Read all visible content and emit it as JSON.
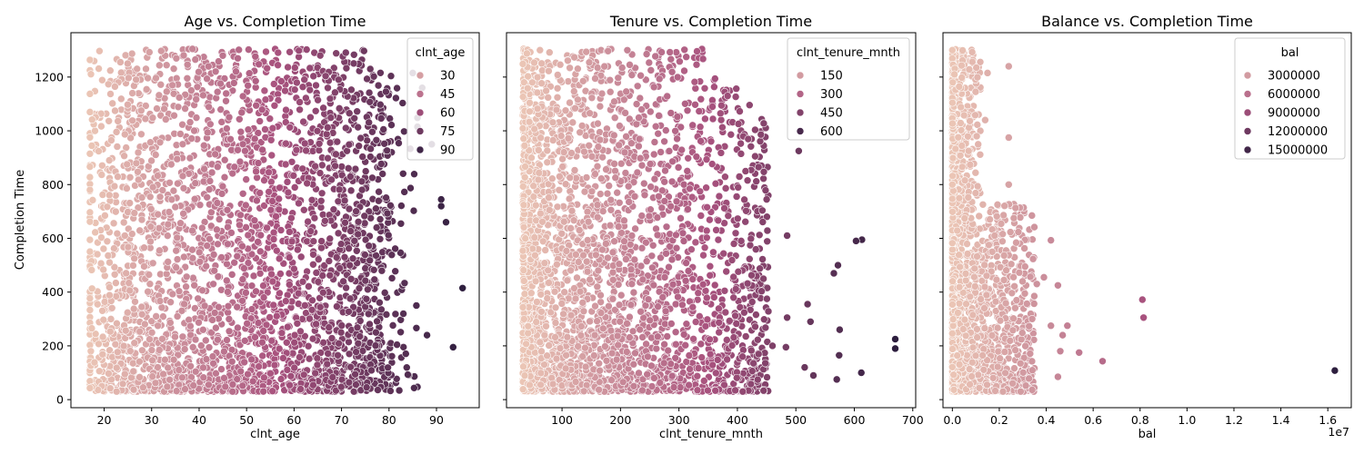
{
  "chart_data": [
    {
      "type": "scatter",
      "title": "Age vs. Completion Time",
      "xlabel": "clnt_age",
      "ylabel": "Completion Time",
      "xlim": [
        13,
        99
      ],
      "ylim": [
        -30,
        1365
      ],
      "xticks": [
        20,
        30,
        40,
        50,
        60,
        70,
        80,
        90
      ],
      "yticks": [
        0,
        200,
        400,
        600,
        800,
        1000,
        1200
      ],
      "grid": false,
      "hue": "clnt_age",
      "hue_range": [
        17,
        96
      ],
      "legend": {
        "title": "clnt_age",
        "placement": "top-right",
        "entries": [
          {
            "label": "30",
            "value": 30
          },
          {
            "label": "45",
            "value": 45
          },
          {
            "label": "60",
            "value": 60
          },
          {
            "label": "75",
            "value": 75
          },
          {
            "label": "90",
            "value": 90
          }
        ]
      },
      "points": {
        "x_range": [
          17,
          96
        ],
        "y_range": [
          30,
          1305
        ],
        "n_approx": 3000,
        "outliers": [
          [
            95.5,
            415
          ],
          [
            93.5,
            195
          ],
          [
            92,
            660
          ],
          [
            91,
            745
          ],
          [
            91,
            720
          ],
          [
            88,
            240
          ],
          [
            86,
            1015
          ],
          [
            87,
            1160
          ],
          [
            85,
            1215
          ],
          [
            89,
            950
          ]
        ]
      }
    },
    {
      "type": "scatter",
      "title": "Tenure vs. Completion Time",
      "xlabel": "clnt_tenure_mnth",
      "ylabel": "",
      "xlim": [
        5,
        705
      ],
      "ylim": [
        -30,
        1365
      ],
      "xticks": [
        100,
        200,
        300,
        400,
        500,
        600,
        700
      ],
      "yticks": [
        0,
        200,
        400,
        600,
        800,
        1000,
        1200
      ],
      "grid": false,
      "hue": "clnt_tenure_mnth",
      "hue_range": [
        33,
        670
      ],
      "legend": {
        "title": "clnt_tenure_mnth",
        "placement": "top-right",
        "entries": [
          {
            "label": "150",
            "value": 150
          },
          {
            "label": "300",
            "value": 300
          },
          {
            "label": "450",
            "value": 450
          },
          {
            "label": "600",
            "value": 600
          }
        ]
      },
      "points": {
        "x_range": [
          33,
          670
        ],
        "y_range": [
          30,
          1305
        ],
        "n_approx": 3000,
        "outliers": [
          [
            670,
            225
          ],
          [
            670,
            190
          ],
          [
            613,
            595
          ],
          [
            603,
            590
          ],
          [
            612,
            100
          ],
          [
            575,
            260
          ],
          [
            572,
            500
          ],
          [
            574,
            165
          ],
          [
            565,
            470
          ],
          [
            570,
            75
          ],
          [
            530,
            90
          ],
          [
            520,
            355
          ],
          [
            525,
            290
          ],
          [
            515,
            120
          ],
          [
            505,
            925
          ],
          [
            485,
            610
          ],
          [
            485,
            305
          ],
          [
            483,
            195
          ],
          [
            460,
            200
          ],
          [
            450,
            745
          ]
        ]
      }
    },
    {
      "type": "scatter",
      "title": "Balance vs. Completion Time",
      "xlabel": "bal",
      "ylabel": "",
      "x_scale_label": "1e7",
      "xlim": [
        -0.04,
        1.7
      ],
      "ylim": [
        -30,
        1365
      ],
      "xticks": [
        "0.0",
        "0.2",
        "0.4",
        "0.6",
        "0.8",
        "1.0",
        "1.2",
        "1.4",
        "1.6"
      ],
      "yticks": [
        0,
        200,
        400,
        600,
        800,
        1000,
        1200
      ],
      "grid": false,
      "hue": "bal",
      "hue_range": [
        0,
        16300000
      ],
      "legend": {
        "title": "bal",
        "placement": "top-right",
        "entries": [
          {
            "label": "3000000",
            "value": 3000000
          },
          {
            "label": "6000000",
            "value": 6000000
          },
          {
            "label": "9000000",
            "value": 9000000
          },
          {
            "label": "12000000",
            "value": 12000000
          },
          {
            "label": "15000000",
            "value": 15000000
          }
        ]
      },
      "points": {
        "x_range": [
          0,
          1.63
        ],
        "y_range": [
          30,
          1305
        ],
        "n_approx": 2000,
        "outliers": [
          [
            1.63,
            108
          ],
          [
            0.81,
            372
          ],
          [
            0.815,
            305
          ],
          [
            0.64,
            143
          ],
          [
            0.54,
            175
          ],
          [
            0.49,
            275
          ],
          [
            0.47,
            240
          ],
          [
            0.46,
            180
          ],
          [
            0.45,
            85
          ],
          [
            0.45,
            425
          ],
          [
            0.42,
            593
          ],
          [
            0.42,
            275
          ],
          [
            0.39,
            455
          ],
          [
            0.36,
            430
          ],
          [
            0.34,
            300
          ],
          [
            0.31,
            495
          ],
          [
            0.29,
            135
          ],
          [
            0.24,
            1240
          ],
          [
            0.24,
            975
          ],
          [
            0.24,
            800
          ],
          [
            0.18,
            610
          ],
          [
            0.17,
            550
          ],
          [
            0.15,
            1215
          ],
          [
            0.14,
            1040
          ],
          [
            0.11,
            950
          ],
          [
            0.22,
            445
          ]
        ]
      }
    }
  ],
  "colors": {
    "hue_low": "#ebc5b5",
    "hue_mid": "#a8527e",
    "hue_high": "#2d1e3e",
    "marker_edge": "#ffffff",
    "axis": "#000000"
  }
}
